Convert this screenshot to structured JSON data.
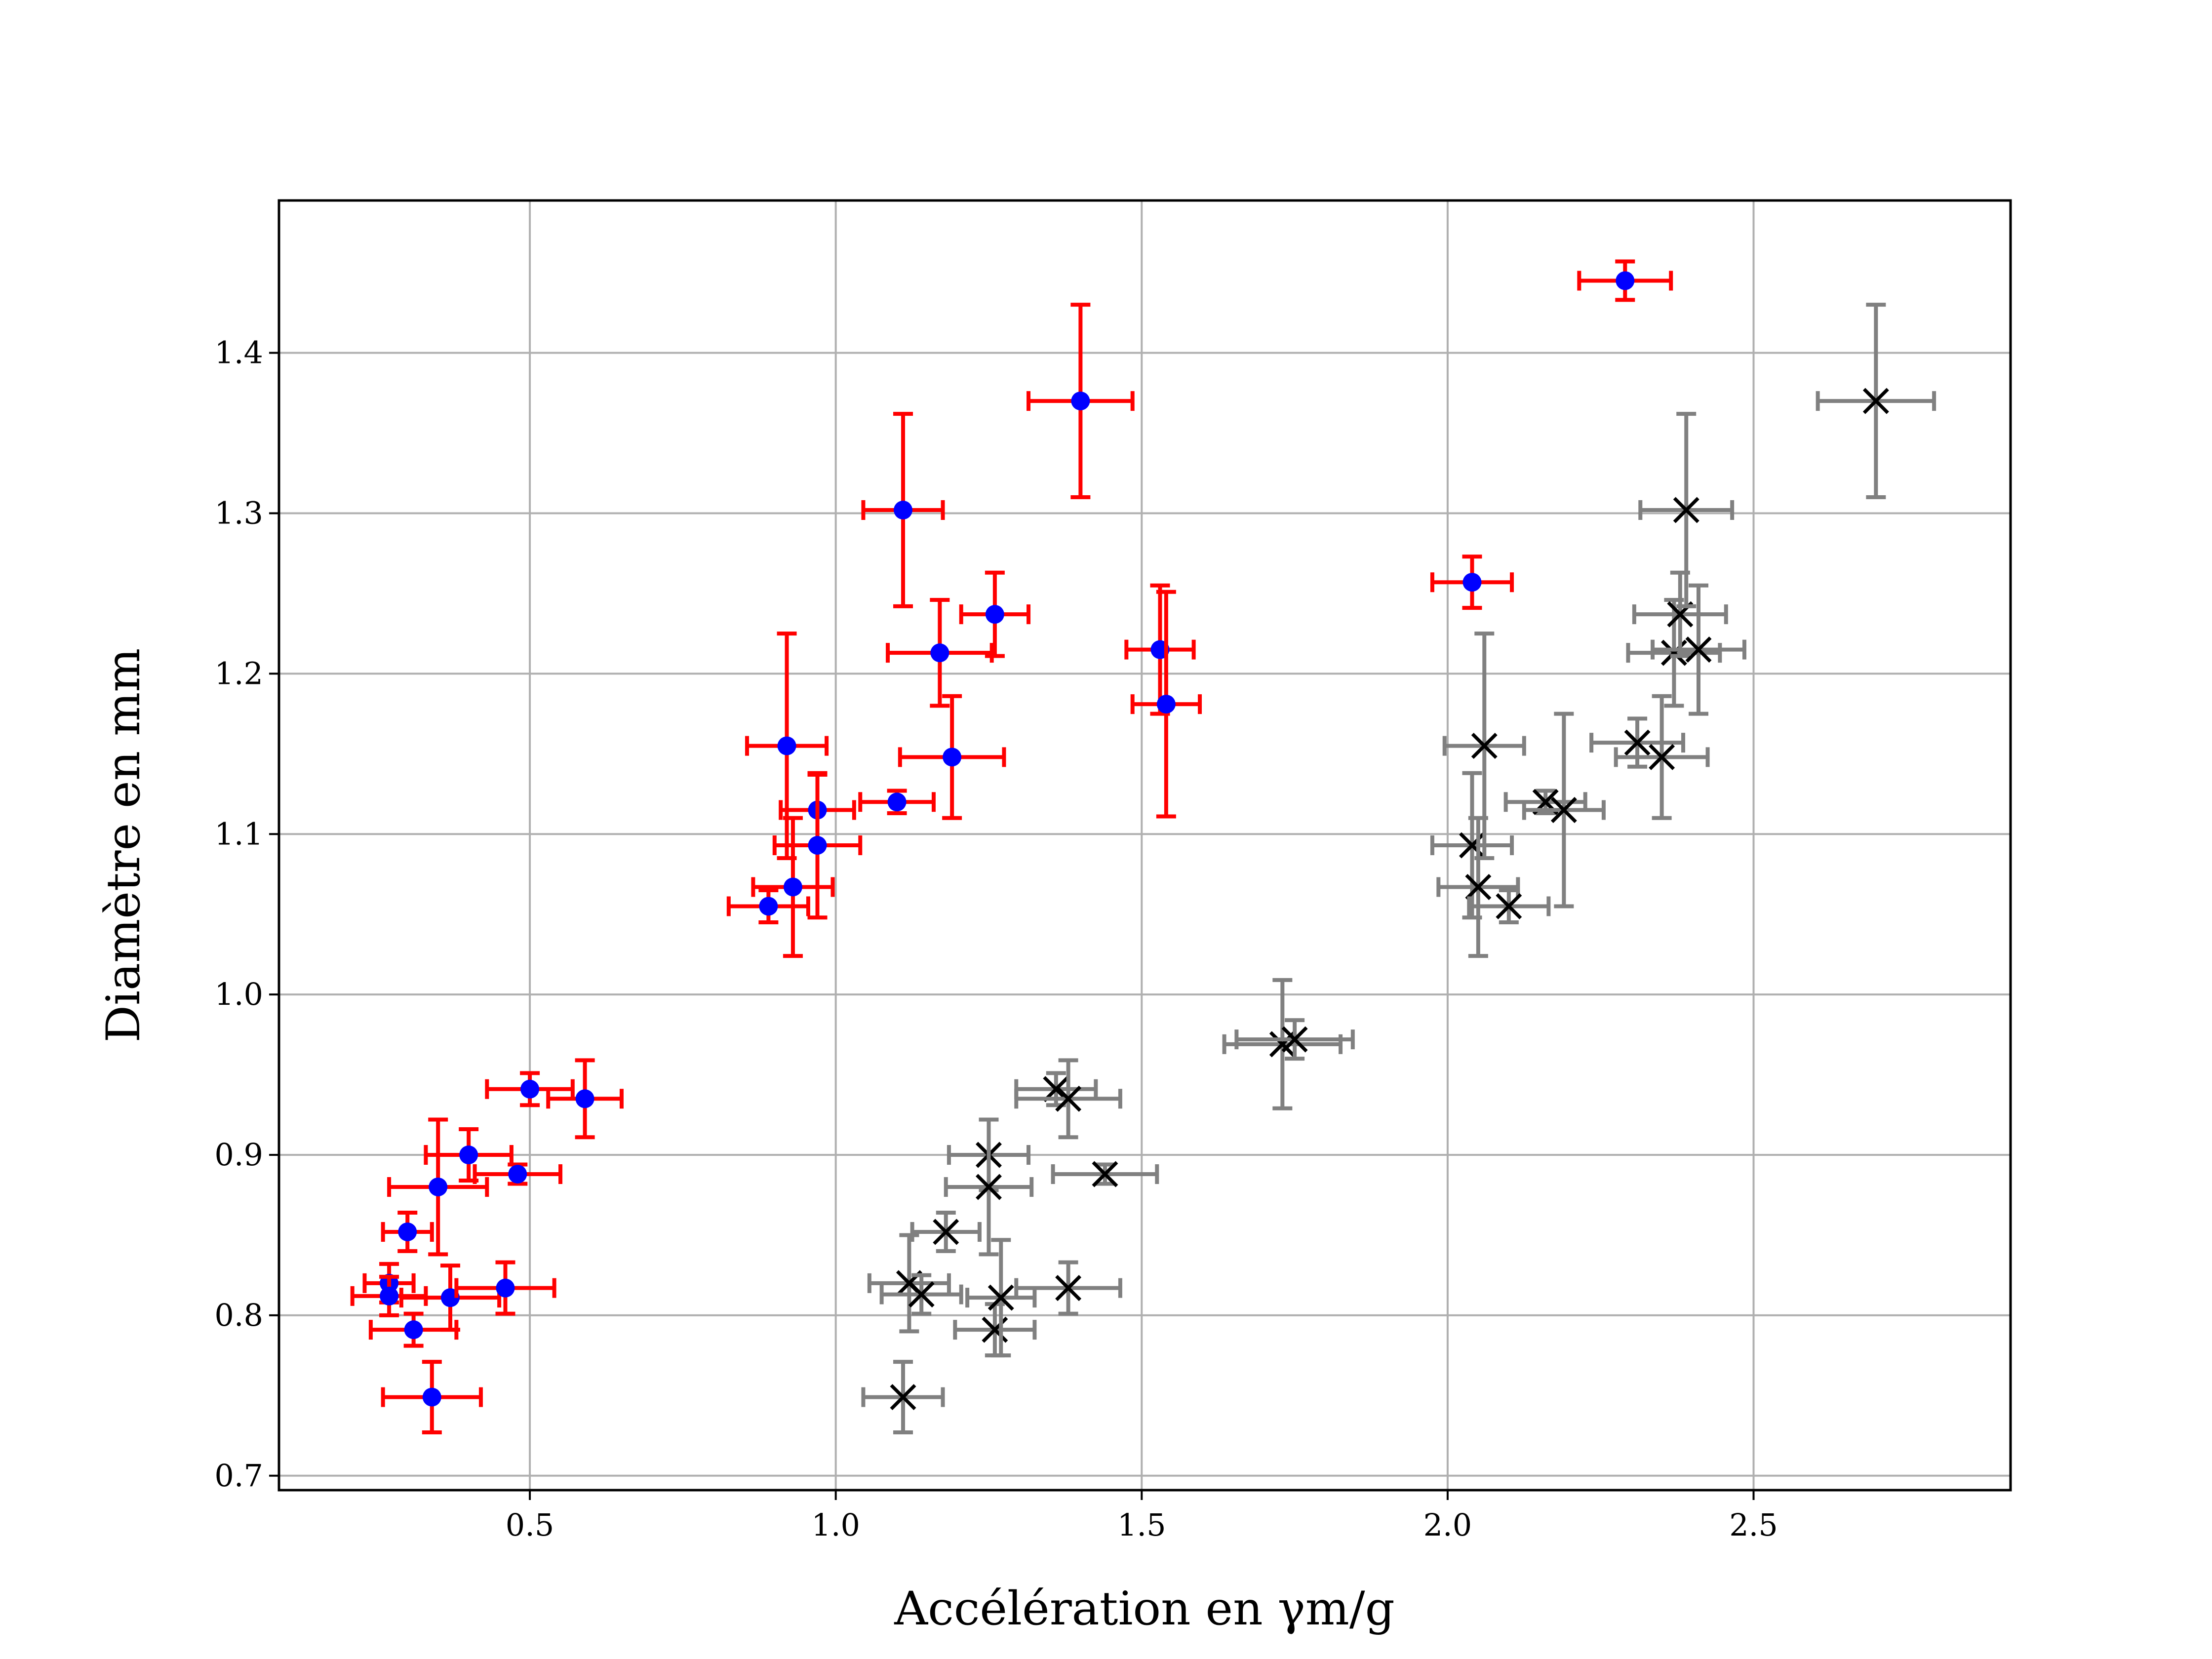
{
  "chart_data": {
    "type": "scatter",
    "xlabel": "Accélération en γm/g",
    "ylabel": "Diamètre en mm",
    "xlim": [
      0.09,
      2.92
    ],
    "ylim": [
      0.691,
      1.495
    ],
    "x_ticks": [
      "0.5",
      "1.0",
      "1.5",
      "2.0",
      "2.5"
    ],
    "y_ticks": [
      "0.7",
      "0.8",
      "0.9",
      "1.0",
      "1.1",
      "1.2",
      "1.3",
      "1.4"
    ],
    "grid": true,
    "series": [
      {
        "marker": "dot",
        "color": "#0000ff",
        "error_color": "#ff0000",
        "points": [
          {
            "x": 0.27,
            "y": 0.82,
            "xerr": 0.04,
            "yerr": 0.012
          },
          {
            "x": 0.27,
            "y": 0.812,
            "xerr": 0.06,
            "yerr": 0.012
          },
          {
            "x": 0.3,
            "y": 0.852,
            "xerr": 0.04,
            "yerr": 0.012
          },
          {
            "x": 0.31,
            "y": 0.791,
            "xerr": 0.07,
            "yerr": 0.01
          },
          {
            "x": 0.34,
            "y": 0.749,
            "xerr": 0.08,
            "yerr": 0.022
          },
          {
            "x": 0.35,
            "y": 0.88,
            "xerr": 0.08,
            "yerr": 0.042
          },
          {
            "x": 0.37,
            "y": 0.811,
            "xerr": 0.08,
            "yerr": 0.02
          },
          {
            "x": 0.4,
            "y": 0.9,
            "xerr": 0.07,
            "yerr": 0.016
          },
          {
            "x": 0.46,
            "y": 0.817,
            "xerr": 0.08,
            "yerr": 0.016
          },
          {
            "x": 0.48,
            "y": 0.888,
            "xerr": 0.07,
            "yerr": 0.006
          },
          {
            "x": 0.5,
            "y": 0.941,
            "xerr": 0.07,
            "yerr": 0.01
          },
          {
            "x": 0.59,
            "y": 0.935,
            "xerr": 0.06,
            "yerr": 0.024
          },
          {
            "x": 0.89,
            "y": 1.055,
            "xerr": 0.065,
            "yerr": 0.01
          },
          {
            "x": 0.92,
            "y": 1.155,
            "xerr": 0.065,
            "yerr": 0.07
          },
          {
            "x": 0.93,
            "y": 1.067,
            "xerr": 0.065,
            "yerr": 0.043
          },
          {
            "x": 0.97,
            "y": 1.115,
            "xerr": 0.06,
            "yerr": 0.022
          },
          {
            "x": 0.97,
            "y": 1.093,
            "xerr": 0.07,
            "yerr": 0.045
          },
          {
            "x": 1.1,
            "y": 1.12,
            "xerr": 0.06,
            "yerr": 0.007
          },
          {
            "x": 1.11,
            "y": 1.302,
            "xerr": 0.065,
            "yerr": 0.06
          },
          {
            "x": 1.17,
            "y": 1.213,
            "xerr": 0.085,
            "yerr": 0.033
          },
          {
            "x": 1.19,
            "y": 1.148,
            "xerr": 0.085,
            "yerr": 0.038
          },
          {
            "x": 1.26,
            "y": 1.237,
            "xerr": 0.055,
            "yerr": 0.026
          },
          {
            "x": 1.4,
            "y": 1.37,
            "xerr": 0.085,
            "yerr": 0.06
          },
          {
            "x": 1.53,
            "y": 1.215,
            "xerr": 0.055,
            "yerr": 0.04
          },
          {
            "x": 1.54,
            "y": 1.181,
            "xerr": 0.055,
            "yerr": 0.07
          },
          {
            "x": 2.04,
            "y": 1.257,
            "xerr": 0.065,
            "yerr": 0.016
          },
          {
            "x": 2.29,
            "y": 1.445,
            "xerr": 0.075,
            "yerr": 0.012
          }
        ]
      },
      {
        "marker": "x",
        "color": "#000000",
        "error_color": "#808080",
        "points": [
          {
            "x": 1.11,
            "y": 0.749,
            "xerr": 0.065,
            "yerr": 0.022
          },
          {
            "x": 1.12,
            "y": 0.82,
            "xerr": 0.065,
            "yerr": 0.03
          },
          {
            "x": 1.14,
            "y": 0.813,
            "xerr": 0.065,
            "yerr": 0.012
          },
          {
            "x": 1.18,
            "y": 0.852,
            "xerr": 0.055,
            "yerr": 0.012
          },
          {
            "x": 1.25,
            "y": 0.9,
            "xerr": 0.065,
            "yerr": 0.022
          },
          {
            "x": 1.25,
            "y": 0.88,
            "xerr": 0.07,
            "yerr": 0.042
          },
          {
            "x": 1.26,
            "y": 0.791,
            "xerr": 0.065,
            "yerr": 0.016
          },
          {
            "x": 1.27,
            "y": 0.811,
            "xerr": 0.055,
            "yerr": 0.036
          },
          {
            "x": 1.36,
            "y": 0.941,
            "xerr": 0.065,
            "yerr": 0.01
          },
          {
            "x": 1.38,
            "y": 0.935,
            "xerr": 0.085,
            "yerr": 0.024
          },
          {
            "x": 1.38,
            "y": 0.817,
            "xerr": 0.085,
            "yerr": 0.016
          },
          {
            "x": 1.44,
            "y": 0.888,
            "xerr": 0.085,
            "yerr": 0.006
          },
          {
            "x": 1.73,
            "y": 0.969,
            "xerr": 0.095,
            "yerr": 0.04
          },
          {
            "x": 1.75,
            "y": 0.972,
            "xerr": 0.095,
            "yerr": 0.012
          },
          {
            "x": 2.04,
            "y": 1.093,
            "xerr": 0.065,
            "yerr": 0.045
          },
          {
            "x": 2.05,
            "y": 1.067,
            "xerr": 0.065,
            "yerr": 0.043
          },
          {
            "x": 2.06,
            "y": 1.155,
            "xerr": 0.065,
            "yerr": 0.07
          },
          {
            "x": 2.1,
            "y": 1.055,
            "xerr": 0.065,
            "yerr": 0.01
          },
          {
            "x": 2.16,
            "y": 1.12,
            "xerr": 0.065,
            "yerr": 0.007
          },
          {
            "x": 2.19,
            "y": 1.115,
            "xerr": 0.065,
            "yerr": 0.06
          },
          {
            "x": 2.31,
            "y": 1.157,
            "xerr": 0.075,
            "yerr": 0.015
          },
          {
            "x": 2.35,
            "y": 1.148,
            "xerr": 0.075,
            "yerr": 0.038
          },
          {
            "x": 2.37,
            "y": 1.213,
            "xerr": 0.075,
            "yerr": 0.033
          },
          {
            "x": 2.38,
            "y": 1.237,
            "xerr": 0.075,
            "yerr": 0.026
          },
          {
            "x": 2.39,
            "y": 1.302,
            "xerr": 0.075,
            "yerr": 0.06
          },
          {
            "x": 2.41,
            "y": 1.215,
            "xerr": 0.075,
            "yerr": 0.04
          },
          {
            "x": 2.7,
            "y": 1.37,
            "xerr": 0.095,
            "yerr": 0.06
          }
        ]
      }
    ]
  }
}
